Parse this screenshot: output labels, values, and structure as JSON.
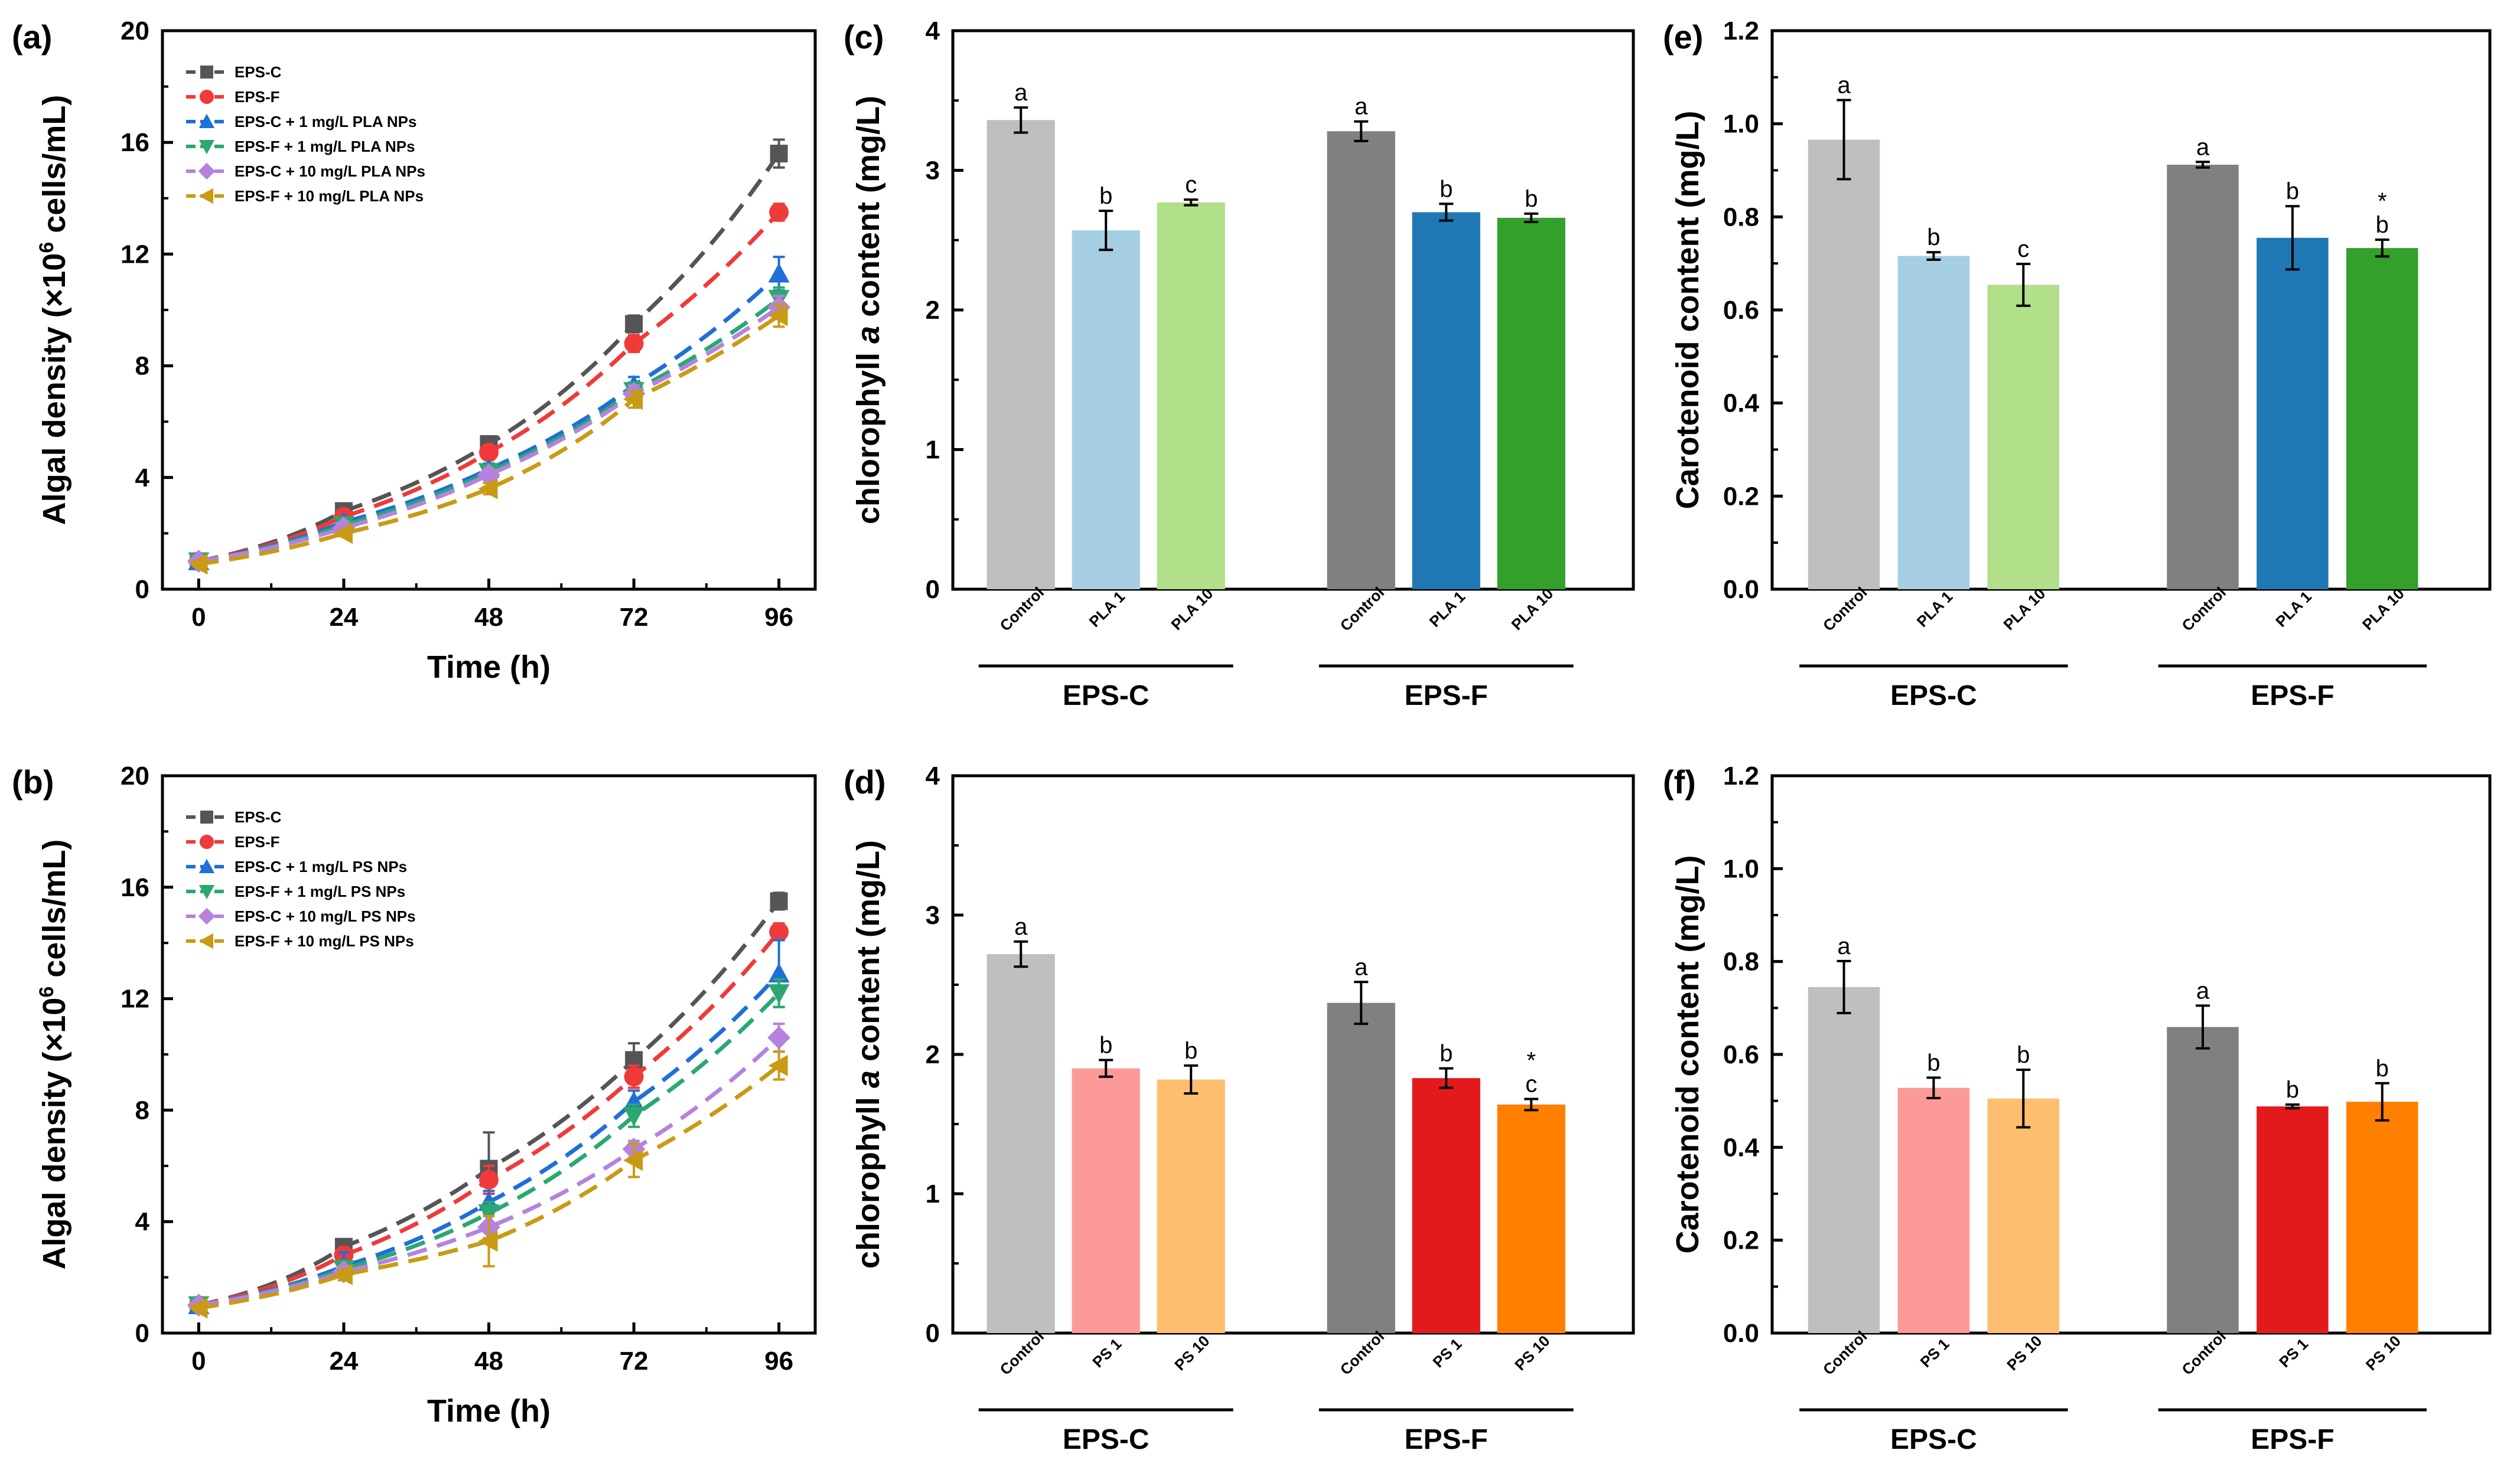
{
  "chart_data": [
    {
      "panel": "(a)",
      "type": "line",
      "xlabel": "Time (h)",
      "ylabel_prefix": "Algal density (×10",
      "ylabel_sup": "6",
      "ylabel_suffix": " cells/mL)",
      "x": [
        0,
        24,
        48,
        72,
        96
      ],
      "xticks": [
        "0",
        "24",
        "48",
        "72",
        "96"
      ],
      "ylim": [
        0,
        20
      ],
      "yticks": [
        "0",
        "4",
        "8",
        "12",
        "16",
        "20"
      ],
      "legend_position": "top-left",
      "series": [
        {
          "name": "EPS-C",
          "marker": "square",
          "color": "#555555",
          "values": [
            1.0,
            2.8,
            5.2,
            9.5,
            15.6
          ],
          "errors": [
            0.1,
            0.1,
            0.2,
            0.3,
            0.5
          ]
        },
        {
          "name": "EPS-F",
          "marker": "circle",
          "color": "#f03a3a",
          "values": [
            1.0,
            2.6,
            4.9,
            8.8,
            13.5
          ],
          "errors": [
            0.1,
            0.1,
            0.2,
            0.3,
            0.3
          ]
        },
        {
          "name": "EPS-C + 1 mg/L PLA NPs",
          "marker": "triangle-up",
          "color": "#1f6fd8",
          "values": [
            1.0,
            2.4,
            4.3,
            7.3,
            11.3
          ],
          "errors": [
            0.1,
            0.1,
            0.2,
            0.3,
            0.6
          ]
        },
        {
          "name": "EPS-F + 1 mg/L PLA NPs",
          "marker": "triangle-down",
          "color": "#2aa870",
          "values": [
            1.0,
            2.3,
            4.2,
            7.1,
            10.4
          ],
          "errors": [
            0.1,
            0.1,
            0.2,
            0.3,
            0.4
          ]
        },
        {
          "name": "EPS-C + 10 mg/L PLA NPs",
          "marker": "diamond",
          "color": "#b582e0",
          "values": [
            1.0,
            2.2,
            4.1,
            7.0,
            10.1
          ],
          "errors": [
            0.1,
            0.1,
            0.2,
            0.3,
            0.4
          ]
        },
        {
          "name": "EPS-F + 10 mg/L PLA NPs",
          "marker": "triangle-left",
          "color": "#c99a14",
          "values": [
            0.9,
            2.0,
            3.6,
            6.8,
            9.8
          ],
          "errors": [
            0.1,
            0.1,
            0.2,
            0.3,
            0.4
          ]
        }
      ]
    },
    {
      "panel": "(b)",
      "type": "line",
      "xlabel": "Time (h)",
      "ylabel_prefix": "Algal density (×10",
      "ylabel_sup": "6",
      "ylabel_suffix": " cells/mL)",
      "x": [
        0,
        24,
        48,
        72,
        96
      ],
      "xticks": [
        "0",
        "24",
        "48",
        "72",
        "96"
      ],
      "ylim": [
        0,
        20
      ],
      "yticks": [
        "0",
        "4",
        "8",
        "12",
        "16",
        "20"
      ],
      "legend_position": "top-left",
      "series": [
        {
          "name": "EPS-C",
          "marker": "square",
          "color": "#555555",
          "values": [
            1.0,
            3.1,
            5.9,
            9.8,
            15.5
          ],
          "errors": [
            0.1,
            0.2,
            1.3,
            0.6,
            0.3
          ]
        },
        {
          "name": "EPS-F",
          "marker": "circle",
          "color": "#f03a3a",
          "values": [
            1.0,
            2.8,
            5.5,
            9.2,
            14.4
          ],
          "errors": [
            0.1,
            0.2,
            0.5,
            0.4,
            0.3
          ]
        },
        {
          "name": "EPS-C + 1 mg/L PS NPs",
          "marker": "triangle-up",
          "color": "#1f6fd8",
          "values": [
            1.0,
            2.4,
            4.7,
            8.3,
            12.9
          ],
          "errors": [
            0.1,
            0.5,
            0.4,
            0.4,
            1.2
          ]
        },
        {
          "name": "EPS-F + 1 mg/L PS NPs",
          "marker": "triangle-down",
          "color": "#2aa870",
          "values": [
            1.0,
            2.3,
            4.3,
            7.8,
            12.2
          ],
          "errors": [
            0.1,
            0.3,
            0.4,
            0.4,
            0.5
          ]
        },
        {
          "name": "EPS-C + 10 mg/L PS NPs",
          "marker": "diamond",
          "color": "#b582e0",
          "values": [
            1.0,
            2.2,
            3.8,
            6.6,
            10.6
          ],
          "errors": [
            0.1,
            0.2,
            0.4,
            0.3,
            0.5
          ]
        },
        {
          "name": "EPS-F + 10 mg/L PS NPs",
          "marker": "triangle-left",
          "color": "#c99a14",
          "values": [
            0.9,
            2.1,
            3.3,
            6.2,
            9.6
          ],
          "errors": [
            0.1,
            0.2,
            0.9,
            0.6,
            0.5
          ]
        }
      ]
    },
    {
      "panel": "(c)",
      "type": "bar",
      "ylabel_prefix": "chlorophyll ",
      "ylabel_italic": "a",
      "ylabel_suffix": " content (mg/L)",
      "ylim": [
        0,
        4
      ],
      "yticks": [
        "0",
        "1",
        "2",
        "3",
        "4"
      ],
      "groups": [
        "EPS-C",
        "EPS-F"
      ],
      "categories": [
        "Control",
        "PLA 1",
        "PLA 10",
        "Control",
        "PLA 1",
        "PLA 10"
      ],
      "values": [
        3.36,
        2.57,
        2.77,
        3.28,
        2.7,
        2.66
      ],
      "errors": [
        0.09,
        0.14,
        0.02,
        0.07,
        0.06,
        0.03
      ],
      "colors": [
        "#bfbfbf",
        "#a6cee3",
        "#b2df8a",
        "#808080",
        "#1f78b4",
        "#33a02c"
      ],
      "significance": [
        "a",
        "b",
        "c",
        "a",
        "b",
        "b"
      ]
    },
    {
      "panel": "(d)",
      "type": "bar",
      "ylabel_prefix": "chlorophyll ",
      "ylabel_italic": "a",
      "ylabel_suffix": " content (mg/L)",
      "ylim": [
        0,
        4
      ],
      "yticks": [
        "0",
        "1",
        "2",
        "3",
        "4"
      ],
      "groups": [
        "EPS-C",
        "EPS-F"
      ],
      "categories": [
        "Control",
        "PS 1",
        "PS 10",
        "Control",
        "PS 1",
        "PS 10"
      ],
      "values": [
        2.72,
        1.9,
        1.82,
        2.37,
        1.83,
        1.64
      ],
      "errors": [
        0.09,
        0.06,
        0.1,
        0.15,
        0.07,
        0.04
      ],
      "colors": [
        "#bfbfbf",
        "#fb9a99",
        "#fdbf6f",
        "#808080",
        "#e31a1c",
        "#ff7f00"
      ],
      "significance": [
        "a",
        "b",
        "b",
        "a",
        "b",
        "c"
      ],
      "star_marks": [
        "",
        "",
        "",
        "",
        "",
        "*"
      ]
    },
    {
      "panel": "(e)",
      "type": "bar",
      "ylabel": "Carotenoid content (mg/L)",
      "ylim": [
        0,
        1.2
      ],
      "yticks": [
        "0.0",
        "0.2",
        "0.4",
        "0.6",
        "0.8",
        "1.0",
        "1.2"
      ],
      "groups": [
        "EPS-C",
        "EPS-F"
      ],
      "categories": [
        "Control",
        "PLA 1",
        "PLA 10",
        "Control",
        "PLA 1",
        "PLA 10"
      ],
      "values": [
        0.966,
        0.716,
        0.654,
        0.912,
        0.755,
        0.733
      ],
      "errors": [
        0.085,
        0.008,
        0.045,
        0.006,
        0.068,
        0.018
      ],
      "colors": [
        "#bfbfbf",
        "#a6cee3",
        "#b2df8a",
        "#808080",
        "#1f78b4",
        "#33a02c"
      ],
      "significance": [
        "a",
        "b",
        "c",
        "a",
        "b",
        "b"
      ],
      "star_marks": [
        "",
        "",
        "",
        "",
        "",
        "*"
      ]
    },
    {
      "panel": "(f)",
      "type": "bar",
      "ylabel": "Carotenoid content (mg/L)",
      "ylim": [
        0,
        1.2
      ],
      "yticks": [
        "0.0",
        "0.2",
        "0.4",
        "0.6",
        "0.8",
        "1.0",
        "1.2"
      ],
      "groups": [
        "EPS-C",
        "EPS-F"
      ],
      "categories": [
        "Control",
        "PS 1",
        "PS 10",
        "Control",
        "PS 1",
        "PS 10"
      ],
      "values": [
        0.745,
        0.528,
        0.505,
        0.659,
        0.488,
        0.498
      ],
      "errors": [
        0.056,
        0.022,
        0.062,
        0.046,
        0.004,
        0.04
      ],
      "colors": [
        "#bfbfbf",
        "#fb9a99",
        "#fdbf6f",
        "#808080",
        "#e31a1c",
        "#ff7f00"
      ],
      "significance": [
        "a",
        "b",
        "b",
        "a",
        "b",
        "b"
      ]
    }
  ]
}
